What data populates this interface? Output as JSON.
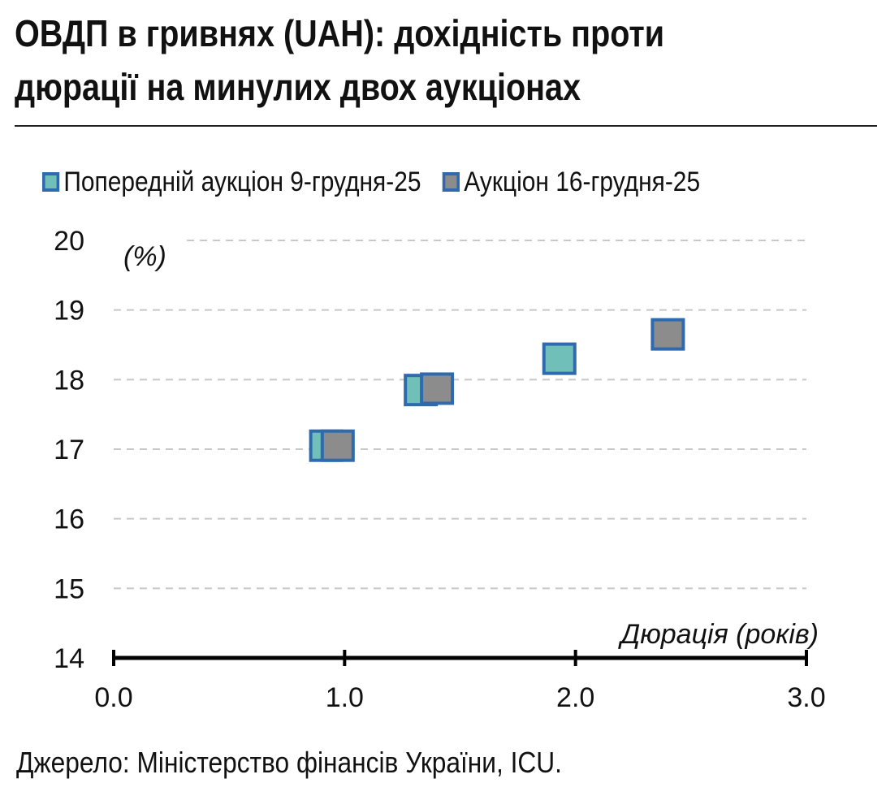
{
  "title_line1": "ОВДП в гривнях (UAH): дохідність проти",
  "title_line2": "дюрації на минулих двох аукціонах",
  "source": "Джерело: Міністерство фінансів України, ICU.",
  "chart_data": {
    "type": "scatter",
    "title": "ОВДП в гривнях (UAH): дохідність проти дюрації на минулих двох аукціонах",
    "xlabel": "Дюрація (років)",
    "ylabel": "(%)",
    "xlim": [
      0.0,
      3.0
    ],
    "ylim": [
      14,
      20
    ],
    "x_ticks": [
      "0.0",
      "1.0",
      "2.0",
      "3.0"
    ],
    "y_ticks": [
      "14",
      "15",
      "16",
      "17",
      "18",
      "19",
      "20"
    ],
    "grid": true,
    "legend_position": "top",
    "series": [
      {
        "name": "Попередній аукціон 9-грудня-25",
        "color": "#70bfb9",
        "points": [
          {
            "x": 0.92,
            "y": 17.05
          },
          {
            "x": 1.33,
            "y": 17.85
          },
          {
            "x": 1.93,
            "y": 18.3
          }
        ]
      },
      {
        "name": "Аукціон 16-грудня-25",
        "color": "#8c8c8c",
        "points": [
          {
            "x": 0.97,
            "y": 17.05
          },
          {
            "x": 1.4,
            "y": 17.87
          },
          {
            "x": 2.4,
            "y": 18.65
          }
        ]
      }
    ],
    "marker_border_color": "#2e6aad"
  }
}
